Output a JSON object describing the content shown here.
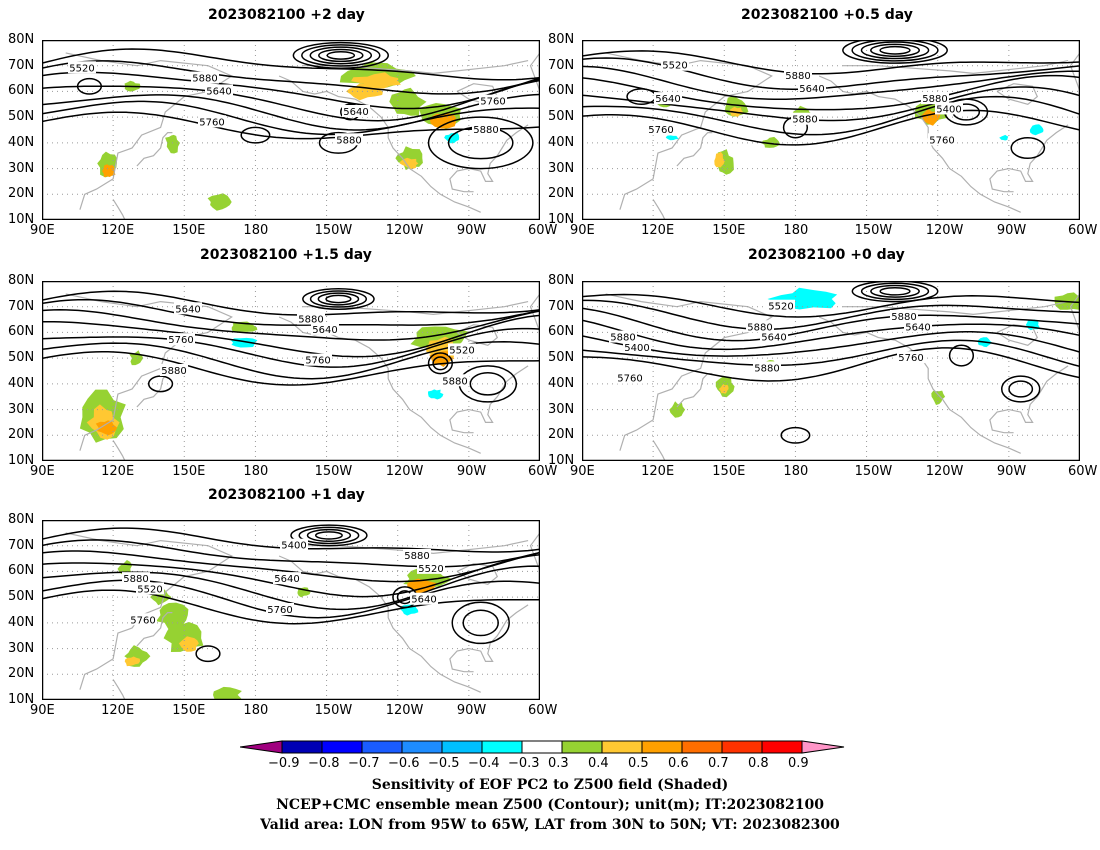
{
  "panels": [
    {
      "title": "2023082100  +2 day",
      "lat_labels": [
        "80N",
        "70N",
        "60N",
        "50N",
        "40N",
        "30N",
        "20N",
        "10N"
      ],
      "lon_labels": [
        "90E",
        "120E",
        "150E",
        "180",
        "150W",
        "120W",
        "90W",
        "60W"
      ],
      "contour_labels": [
        "5520",
        "5640",
        "5640",
        "5760",
        "5760",
        "5880",
        "5880",
        "5880"
      ],
      "shading": "positive sensitivity (0.3 to 0.6) over the Gulf of Alaska / western North America and Pacific Northwest; small patches near Japan and the tropical west Pacific"
    },
    {
      "title": "2023082100  +0.5 day",
      "lat_labels": [
        "80N",
        "70N",
        "60N",
        "50N",
        "40N",
        "30N",
        "20N",
        "10N"
      ],
      "lon_labels": [
        "90E",
        "120E",
        "150E",
        "180",
        "150W",
        "120W",
        "90W",
        "60W"
      ],
      "contour_labels": [
        "5520",
        "5640",
        "5400",
        "5640",
        "5880",
        "5760",
        "5760",
        "5880",
        "5880"
      ],
      "shading": "positive patches east of Japan and over western Canada; scattered small negative (cyan) patches over eastern North America"
    },
    {
      "title": "2023082100  +1.5 day",
      "lat_labels": [
        "80N",
        "70N",
        "60N",
        "50N",
        "40N",
        "30N",
        "20N",
        "10N"
      ],
      "lon_labels": [
        "90E",
        "120E",
        "150E",
        "180",
        "150W",
        "120W",
        "90W",
        "60W"
      ],
      "contour_labels": [
        "5640",
        "5640",
        "5520",
        "5760",
        "5760",
        "5880",
        "5880",
        "5880"
      ],
      "shading": "positive over south China / Philippines and over west-central North America; negative patches in the north Pacific and over the central US"
    },
    {
      "title": "2023082100  +0 day",
      "lat_labels": [
        "80N",
        "70N",
        "60N",
        "50N",
        "40N",
        "30N",
        "20N",
        "10N"
      ],
      "lon_labels": [
        "90E",
        "120E",
        "150E",
        "180",
        "150W",
        "120W",
        "90W",
        "60W"
      ],
      "contour_labels": [
        "5520",
        "5640",
        "5400",
        "5640",
        "5760",
        "5760",
        "5880",
        "5880",
        "5880",
        "5880"
      ],
      "shading": "negative patch over the Bering Sea region; scattered small positive and negative patches elsewhere"
    },
    {
      "title": "2023082100  +1 day",
      "lat_labels": [
        "80N",
        "70N",
        "60N",
        "50N",
        "40N",
        "30N",
        "20N",
        "10N"
      ],
      "lon_labels": [
        "90E",
        "120E",
        "150E",
        "180",
        "150W",
        "120W",
        "90W",
        "60W"
      ],
      "contour_labels": [
        "5400",
        "5520",
        "5520",
        "5640",
        "5640",
        "5760",
        "5760",
        "5880",
        "5880"
      ],
      "shading": "positive over East Asia, the west Pacific and the Pacific Northwest; small negative patch off the west coast of North America"
    }
  ],
  "colorbar": {
    "ticks": [
      "−0.9",
      "−0.8",
      "−0.7",
      "−0.6",
      "−0.5",
      "−0.4",
      "−0.3",
      "0.3",
      "0.4",
      "0.5",
      "0.6",
      "0.7",
      "0.8",
      "0.9"
    ],
    "colors": [
      "#a0007f",
      "#0000b4",
      "#0000ff",
      "#1a5cff",
      "#1e8cff",
      "#00c0ff",
      "#00ffff",
      "#ffffff",
      "#96d232",
      "#ffc832",
      "#ffa000",
      "#ff6e00",
      "#ff3200",
      "#ff0000",
      "#ff96c8"
    ]
  },
  "caption": {
    "line1": "Sensitivity of EOF PC2 to Z500 field (Shaded)",
    "line2": "NCEP+CMC ensemble mean Z500 (Contour); unit(m); IT:2023082100",
    "line3": "Valid area: LON from 95W to 65W, LAT from 30N to 50N; VT: 2023082300"
  },
  "colors": {
    "coast": "#b0b0b0",
    "contour": "#000000",
    "grid": "#9a9a9a",
    "pos_light": "#96d232",
    "pos_mid": "#ffc832",
    "pos_high": "#ffa000",
    "neg": "#00ffff"
  }
}
